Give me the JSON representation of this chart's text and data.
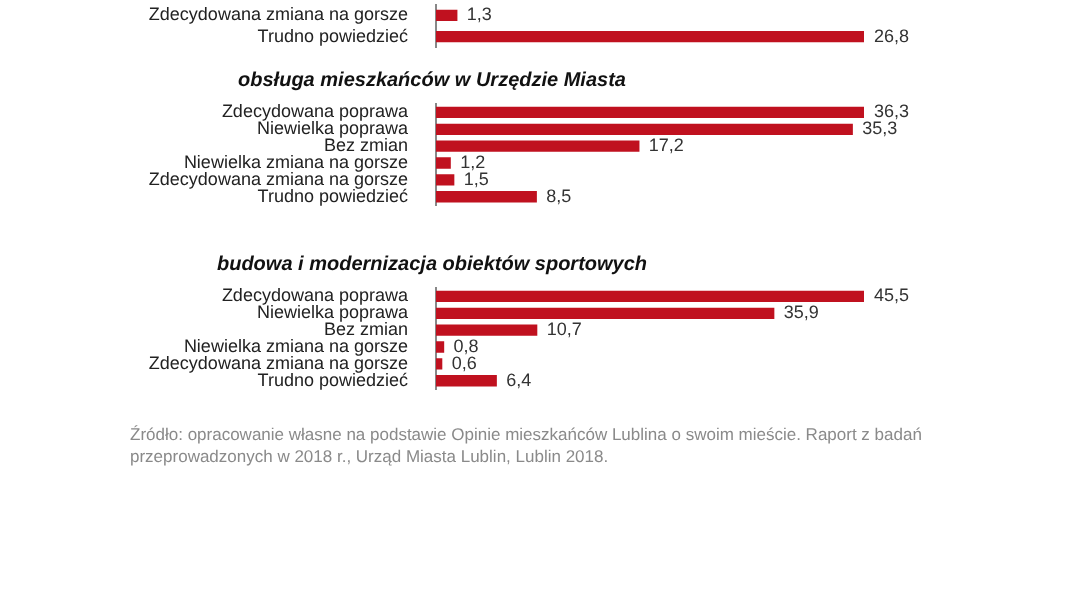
{
  "chart_data": [
    {
      "type": "bar",
      "orientation": "horizontal",
      "color": "#c0111f",
      "categories": [
        "Zdecydowana zmiana na gorsze",
        "Trudno powiedzieć"
      ],
      "values": [
        1.3,
        26.8
      ],
      "value_labels": [
        "1,3",
        "26,8"
      ]
    },
    {
      "type": "bar",
      "orientation": "horizontal",
      "color": "#c0111f",
      "title": "obsługa mieszkańców w Urzędzie Miasta",
      "categories": [
        "Zdecydowana poprawa",
        "Niewielka poprawa",
        "Bez zmian",
        "Niewielka zmiana na gorsze",
        "Zdecydowana zmiana na gorsze",
        "Trudno powiedzieć"
      ],
      "values": [
        36.3,
        35.3,
        17.2,
        1.2,
        1.5,
        8.5
      ],
      "value_labels": [
        "36,3",
        "35,3",
        "17,2",
        "1,2",
        "1,5",
        "8,5"
      ]
    },
    {
      "type": "bar",
      "orientation": "horizontal",
      "color": "#c0111f",
      "title": "budowa i modernizacja obiektów sportowych",
      "categories": [
        "Zdecydowana poprawa",
        "Niewielka poprawa",
        "Bez zmian",
        "Niewielka zmiana na gorsze",
        "Zdecydowana zmiana na gorsze",
        "Trudno powiedzieć"
      ],
      "values": [
        45.5,
        35.9,
        10.7,
        0.8,
        0.6,
        6.4
      ],
      "value_labels": [
        "45,5",
        "35,9",
        "10,7",
        "0,8",
        "0,6",
        "6,4"
      ],
      "annotations": [
        "Źródło: opracowanie własne na podstawie Opinie mieszkańców Lublina o swoim mieście. Raport z badań przeprowadzonych w 2018 r., Urząd Miasta Lublin, Lublin 2018."
      ]
    }
  ]
}
